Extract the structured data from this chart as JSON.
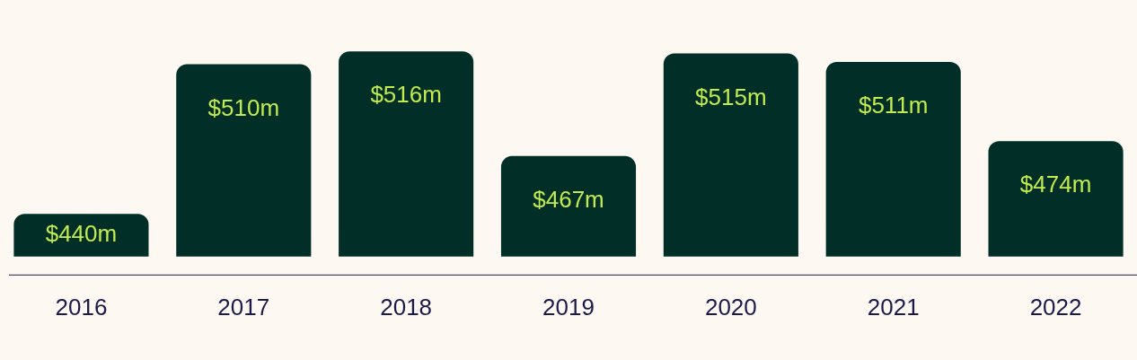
{
  "chart_data": {
    "type": "bar",
    "categories": [
      "2016",
      "2017",
      "2018",
      "2019",
      "2020",
      "2021",
      "2022"
    ],
    "series": [
      {
        "color": "#022e28",
        "values": [
          440,
          510,
          516,
          467,
          515,
          511,
          474
        ],
        "value_labels": [
          "$440m",
          "$510m",
          "$516m",
          "$467m",
          "$515m",
          "$511m",
          "$474m"
        ]
      }
    ],
    "tick_labels": "x",
    "grid": false,
    "legend": false
  }
}
